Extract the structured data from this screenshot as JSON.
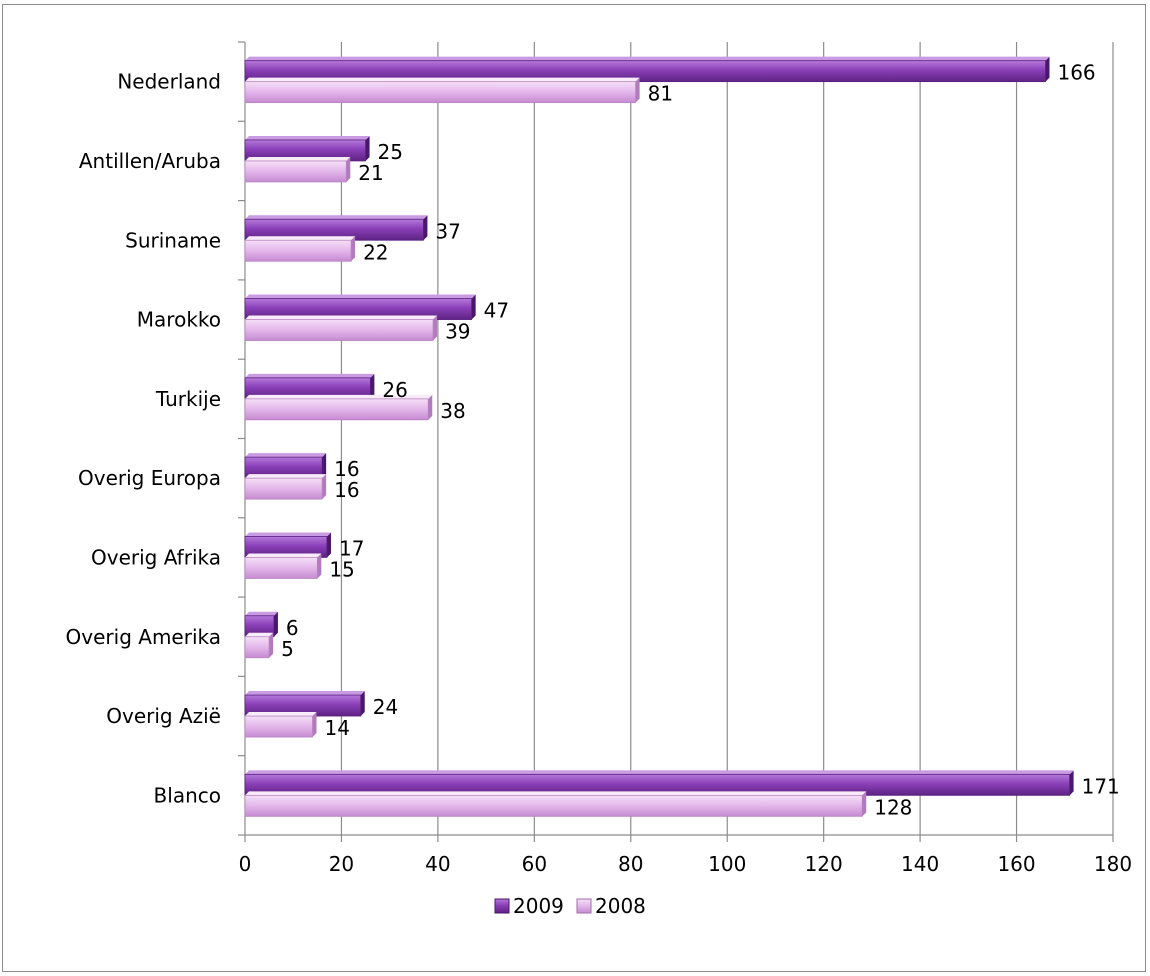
{
  "chart_data": {
    "type": "bar",
    "orientation": "horizontal",
    "categories": [
      "Nederland",
      "Antillen/Aruba",
      "Suriname",
      "Marokko",
      "Turkije",
      "Overig Europa",
      "Overig Afrika",
      "Overig Amerika",
      "Overig Azië",
      "Blanco"
    ],
    "series": [
      {
        "name": "2009",
        "values": [
          166,
          25,
          37,
          47,
          26,
          16,
          17,
          6,
          24,
          171
        ]
      },
      {
        "name": "2008",
        "values": [
          81,
          21,
          22,
          39,
          38,
          16,
          15,
          5,
          14,
          128
        ]
      }
    ],
    "xlim": [
      0,
      180
    ],
    "xticks": [
      "0",
      "20",
      "40",
      "60",
      "80",
      "100",
      "120",
      "140",
      "160",
      "180"
    ],
    "grid": "vertical",
    "legend_position": "bottom",
    "colors": {
      "2009": "#8a3fb8",
      "2008": "#e3b6ea"
    }
  }
}
